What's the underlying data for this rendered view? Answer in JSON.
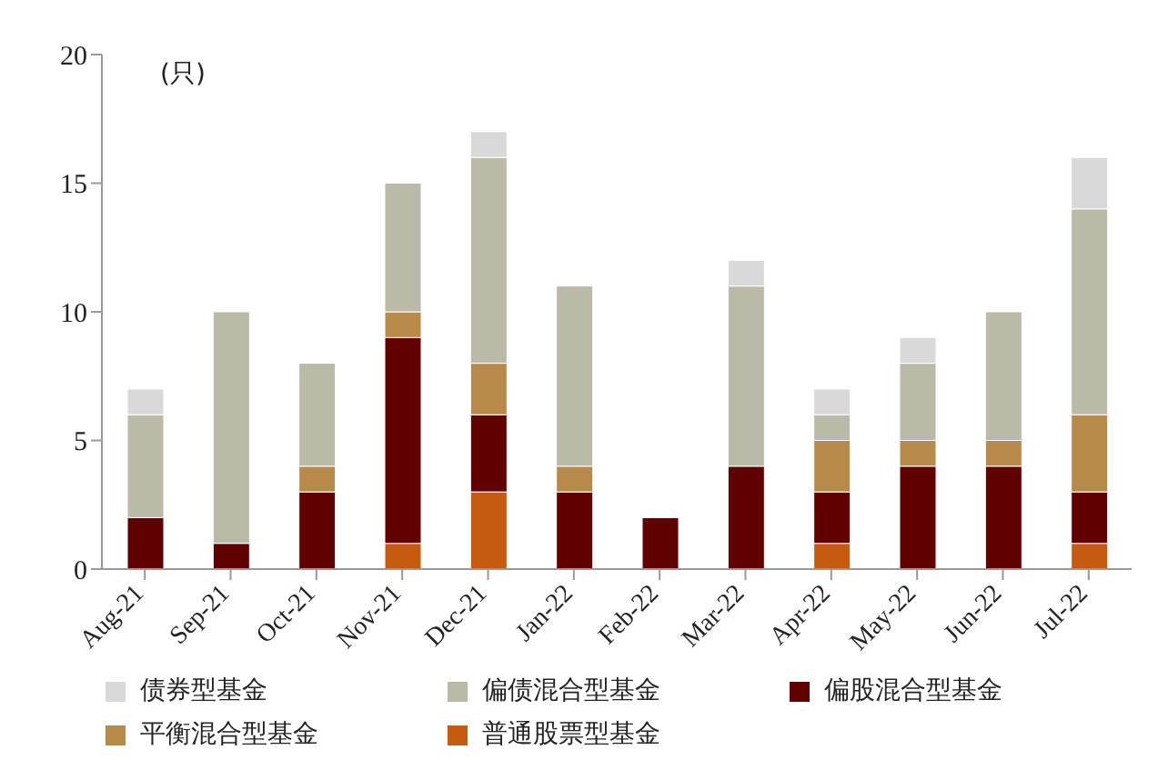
{
  "chart_data": {
    "type": "bar",
    "stacked": true,
    "annotations": [
      "(只)"
    ],
    "categories": [
      "Aug-21",
      "Sep-21",
      "Oct-21",
      "Nov-21",
      "Dec-21",
      "Jan-22",
      "Feb-22",
      "Mar-22",
      "Apr-22",
      "May-22",
      "Jun-22",
      "Jul-22"
    ],
    "series": [
      {
        "name": "普通股票型基金",
        "color": "#c55a11",
        "values": [
          0,
          0,
          0,
          1,
          3,
          0,
          0,
          0,
          1,
          0,
          0,
          1
        ]
      },
      {
        "name": "偏股混合型基金",
        "color": "#600000",
        "values": [
          2,
          1,
          3,
          8,
          3,
          3,
          2,
          4,
          2,
          4,
          4,
          2
        ]
      },
      {
        "name": "平衡混合型基金",
        "color": "#b88a4a",
        "values": [
          0,
          0,
          1,
          1,
          2,
          1,
          0,
          0,
          2,
          1,
          1,
          3
        ]
      },
      {
        "name": "偏债混合型基金",
        "color": "#bbb9a7",
        "values": [
          4,
          9,
          4,
          5,
          8,
          7,
          0,
          7,
          1,
          3,
          5,
          8
        ]
      },
      {
        "name": "债券型基金",
        "color": "#d9d9d9",
        "values": [
          1,
          0,
          0,
          0,
          1,
          0,
          0,
          1,
          1,
          1,
          0,
          2
        ]
      }
    ],
    "ylim": [
      0,
      20
    ],
    "yticks": [
      0,
      5,
      10,
      15,
      20
    ],
    "grid": false,
    "legend": "bottom"
  }
}
